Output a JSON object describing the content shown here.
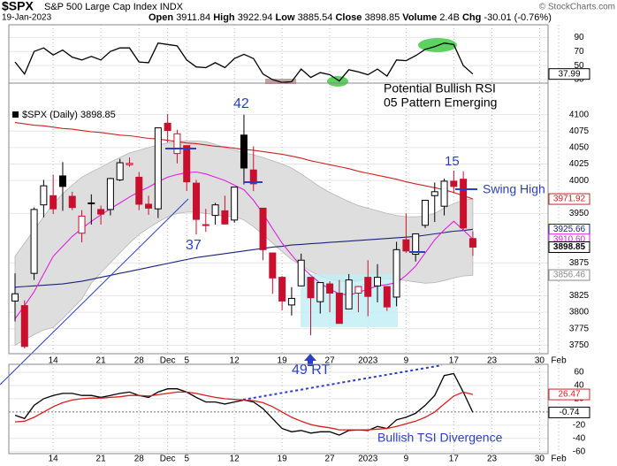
{
  "header": {
    "symbol": "$SPX",
    "name": "S&P 500 Large Cap Index",
    "exchange": "INDX",
    "date": "19-Jan-2023",
    "labels": {
      "open": "Open",
      "high": "High",
      "low": "Low",
      "close": "Close",
      "volume": "Volume",
      "change": "Chg"
    },
    "volume": "2.4B",
    "change": "-30.01 (-0.76%)",
    "source": "© StockCharts.com"
  },
  "chart_data": [
    {
      "type": "line",
      "series": [
        {
          "color": "#000000",
          "values": [
            55,
            38,
            70,
            75,
            65,
            72,
            62,
            58,
            63,
            58,
            70,
            75,
            75,
            55,
            54,
            82,
            80,
            78,
            58,
            48,
            47,
            54,
            47,
            60,
            66,
            60,
            38,
            30,
            26,
            27,
            45,
            33,
            40,
            37,
            28,
            44,
            41,
            37,
            45,
            35,
            58,
            57,
            64,
            73,
            77,
            82,
            80,
            50,
            37.99,
            null,
            null,
            null,
            null,
            null,
            null,
            null,
            null,
            null
          ]
        }
      ],
      "ylim": [
        25,
        108
      ],
      "yticks": [
        30,
        50,
        70,
        90
      ],
      "grid": true
    },
    {
      "type": "candlestick",
      "name": "$SPX (Daily)",
      "categories": [
        null,
        null,
        null,
        null,
        "14",
        null,
        null,
        null,
        null,
        "21",
        null,
        null,
        null,
        "28",
        null,
        null,
        "Dec",
        null,
        "5",
        null,
        null,
        null,
        null,
        "12",
        null,
        null,
        null,
        null,
        "19",
        null,
        null,
        null,
        null,
        "27",
        null,
        null,
        null,
        "2023",
        null,
        null,
        null,
        "9",
        null,
        null,
        null,
        null,
        "17",
        null,
        null,
        null,
        "23",
        null,
        null,
        null,
        null,
        "30",
        null,
        "Feb"
      ],
      "open": [
        3817,
        3810,
        3859,
        3963,
        3977,
        4007,
        3976,
        3920,
        3966,
        3956,
        3956,
        4001,
        4024,
        4005,
        3964,
        3957,
        4087,
        4041,
        4053,
        3996,
        3933,
        3947,
        3954,
        3940,
        4069,
        4016,
        3958,
        3890,
        3853,
        3811,
        3840,
        3853,
        3816,
        3843,
        3829,
        3805,
        3829,
        3853,
        3840,
        3839,
        3823,
        3910,
        3888,
        3932,
        3977,
        3961,
        3999,
        4002,
        3911.84,
        null,
        null,
        null,
        null,
        null,
        null,
        null,
        null,
        null
      ],
      "high": [
        3859,
        3818,
        3959,
        4001,
        4009,
        4028,
        3983,
        3955,
        3979,
        3962,
        4004,
        4033,
        4035,
        4013,
        3977,
        4080,
        4101,
        4077,
        4053,
        4001,
        3957,
        3966,
        3977,
        3990,
        4100,
        4052,
        3958,
        3890,
        3855,
        3838,
        3889,
        3853,
        3845,
        3847,
        3849,
        3858,
        3840,
        3879,
        3873,
        3839,
        3907,
        3950,
        3919,
        3970,
        3997,
        4003,
        4015,
        4014,
        3922.94,
        null,
        null,
        null,
        null,
        null,
        null,
        null,
        null,
        null
      ],
      "low": [
        3786,
        3745,
        3849,
        3944,
        3949,
        3954,
        3955,
        3906,
        3933,
        3933,
        3947,
        3999,
        4021,
        3955,
        3948,
        3943,
        4058,
        4026,
        3984,
        3918,
        3922,
        3933,
        3933,
        3936,
        3994,
        3984,
        3879,
        3828,
        3803,
        3795,
        3840,
        3765,
        3798,
        3800,
        3783,
        3805,
        3800,
        3794,
        3815,
        3802,
        3809,
        3890,
        3877,
        3928,
        3937,
        3947,
        3981,
        3925,
        3885.54,
        null,
        null,
        null,
        null,
        null,
        null,
        null,
        null,
        null
      ],
      "close": [
        3828,
        3748,
        3956,
        3992,
        3957,
        3991,
        3959,
        3946,
        3965,
        3949,
        4003,
        4027,
        4026,
        3964,
        3958,
        4080,
        4076,
        4071,
        3998,
        3941,
        3933,
        3963,
        3934,
        3990,
        4019,
        3995,
        3895,
        3852,
        3817,
        3821,
        3879,
        3822,
        3845,
        3829,
        3783,
        3849,
        3839,
        3824,
        3853,
        3808,
        3895,
        3893,
        3919,
        3970,
        3983,
        3999,
        3991,
        3928,
        3898.85,
        null,
        null,
        null,
        null,
        null,
        null,
        null,
        null,
        null
      ],
      "up_color": "#000000",
      "down_color": "#c8102e",
      "band": {
        "color": "#dedede",
        "upper": [
          3885,
          3905,
          3925,
          3945,
          3965,
          3980,
          3993,
          4005,
          4013,
          4020,
          4028,
          4035,
          4042,
          4046,
          4050,
          4054,
          4057,
          4059,
          4060,
          4060,
          4059,
          4055,
          4050,
          4046,
          4042,
          4039,
          4035,
          4030,
          4025,
          4019,
          4010,
          4000,
          3990,
          3982,
          3975,
          3968,
          3962,
          3958,
          3954,
          3950,
          3947,
          3945,
          3945,
          3946,
          3950,
          3958,
          3965,
          3970,
          3972,
          null,
          null,
          null,
          null,
          null,
          null,
          null,
          null,
          null
        ],
        "lower": [
          3750,
          3758,
          3766,
          3773,
          3777,
          3790,
          3805,
          3820,
          3844,
          3860,
          3875,
          3890,
          3905,
          3918,
          3928,
          3937,
          3945,
          3950,
          3952,
          3952,
          3950,
          3948,
          3946,
          3945,
          3940,
          3930,
          3918,
          3905,
          3892,
          3880,
          3871,
          3862,
          3855,
          3850,
          3847,
          3846,
          3848,
          3850,
          3851,
          3851,
          3850,
          3848,
          3846,
          3844,
          3845,
          3848,
          3852,
          3855,
          3856,
          null,
          null,
          null,
          null,
          null,
          null,
          null,
          null,
          null
        ]
      },
      "overlays": [
        {
          "color": "#cc2222",
          "values": [
            4088,
            4086,
            4084,
            4083,
            4081,
            4079,
            4078,
            4076,
            4074,
            4073,
            4071,
            4069,
            4068,
            4066,
            4064,
            4063,
            4061,
            4059,
            4057,
            4056,
            4054,
            4052,
            4051,
            4049,
            4047,
            4046,
            4044,
            4042,
            4040,
            4037,
            4034,
            4030,
            4027,
            4024,
            4021,
            4018,
            4014,
            4011,
            4008,
            4005,
            4002,
            3998,
            3995,
            3992,
            3989,
            3986,
            3982,
            3977,
            3972,
            null,
            null,
            null,
            null,
            null,
            null,
            null,
            null,
            null
          ]
        },
        {
          "color": "#1a237e",
          "values": [
            3838,
            3839,
            3840,
            3841,
            3842,
            3843,
            3845,
            3847,
            3850,
            3853,
            3856,
            3859,
            3862,
            3865,
            3868,
            3871,
            3874,
            3877,
            3880,
            3883,
            3885,
            3887,
            3889,
            3891,
            3893,
            3895,
            3897,
            3899,
            3900,
            3902,
            3903,
            3904,
            3905,
            3906,
            3907,
            3908,
            3909,
            3910,
            3911,
            3912,
            3913,
            3914,
            3915,
            3917,
            3919,
            3921,
            3923,
            3924,
            3926,
            null,
            null,
            null,
            null,
            null,
            null,
            null,
            null,
            null
          ]
        },
        {
          "color": "#e020e0",
          "values": [
            3790,
            3810,
            3831,
            3858,
            3885,
            3900,
            3915,
            3927,
            3938,
            3948,
            3957,
            3966,
            3975,
            3983,
            3990,
            3998,
            4005,
            4009,
            4012,
            4013,
            4010,
            4005,
            4000,
            3993,
            3986,
            3970,
            3950,
            3927,
            3905,
            3887,
            3870,
            3856,
            3844,
            3835,
            3828,
            3826,
            3830,
            3835,
            3840,
            3842,
            3845,
            3856,
            3870,
            3890,
            3910,
            3925,
            3938,
            3925,
            3911,
            null,
            null,
            null,
            null,
            null,
            null,
            null,
            null,
            null
          ]
        }
      ],
      "last_labels": [
        {
          "value": 3971.92,
          "color": "#cc2222"
        },
        {
          "value": 3925.66,
          "color": "#1a237e"
        },
        {
          "value": 3910.6,
          "label": "3910.60",
          "color": "#e020e0"
        },
        {
          "value": 3856.46,
          "color": "#888888"
        }
      ],
      "ylim": [
        3737,
        4113
      ],
      "yticks": [
        4100,
        4075,
        4050,
        4025,
        4000,
        3950,
        3875,
        3825,
        3800,
        3775,
        3750
      ],
      "grid": true,
      "annotations": {
        "rsi_note": [
          "Potential Bullish RSI",
          "05 Pattern Emerging"
        ],
        "peak_1": "42",
        "trough": "37",
        "peak_2": "15",
        "swing": "Swing High",
        "retest": "49 RT"
      }
    },
    {
      "type": "line",
      "categories": [
        null,
        null,
        null,
        null,
        "14",
        null,
        null,
        null,
        null,
        "21",
        null,
        null,
        null,
        "28",
        null,
        null,
        "Dec",
        null,
        "5",
        null,
        null,
        null,
        null,
        "12",
        null,
        null,
        null,
        null,
        "19",
        null,
        null,
        null,
        null,
        "27",
        null,
        null,
        null,
        "2023",
        null,
        null,
        null,
        "9",
        null,
        null,
        null,
        null,
        "17",
        null,
        null,
        null,
        "23",
        null,
        null,
        null,
        null,
        "30",
        null,
        "Feb"
      ],
      "series": [
        {
          "color": "#000000",
          "values": [
            -5,
            -10,
            10,
            20,
            25,
            28,
            28,
            25,
            25,
            22,
            25,
            28,
            30,
            25,
            22,
            30,
            35,
            35,
            30,
            22,
            15,
            15,
            12,
            15,
            18,
            15,
            5,
            -10,
            -25,
            -30,
            -28,
            -32,
            -30,
            -30,
            -35,
            -28,
            -27,
            -28,
            -22,
            -25,
            -12,
            -8,
            -2,
            10,
            25,
            55,
            58,
            30,
            -0.74,
            null,
            null,
            null,
            null,
            null,
            null,
            null,
            null,
            null
          ]
        },
        {
          "color": "#d42020",
          "values": [
            -15,
            -14,
            -8,
            0,
            8,
            14,
            18,
            20,
            21,
            21,
            22,
            23,
            25,
            25,
            24,
            26,
            28,
            30,
            30,
            28,
            25,
            22,
            20,
            19,
            18,
            17,
            14,
            8,
            0,
            -8,
            -14,
            -19,
            -22,
            -24,
            -27,
            -27,
            -27,
            -27,
            -26,
            -25,
            -22,
            -18,
            -14,
            -8,
            0,
            12,
            24,
            30,
            26.47,
            null,
            null,
            null,
            null,
            null,
            null,
            null,
            null,
            null
          ]
        }
      ],
      "ylim": [
        -63,
        72
      ],
      "yticks": [
        -60,
        -40,
        -20,
        0,
        20,
        40,
        60
      ],
      "grid": true,
      "annotation": "Bullish TSI Divergence"
    }
  ]
}
